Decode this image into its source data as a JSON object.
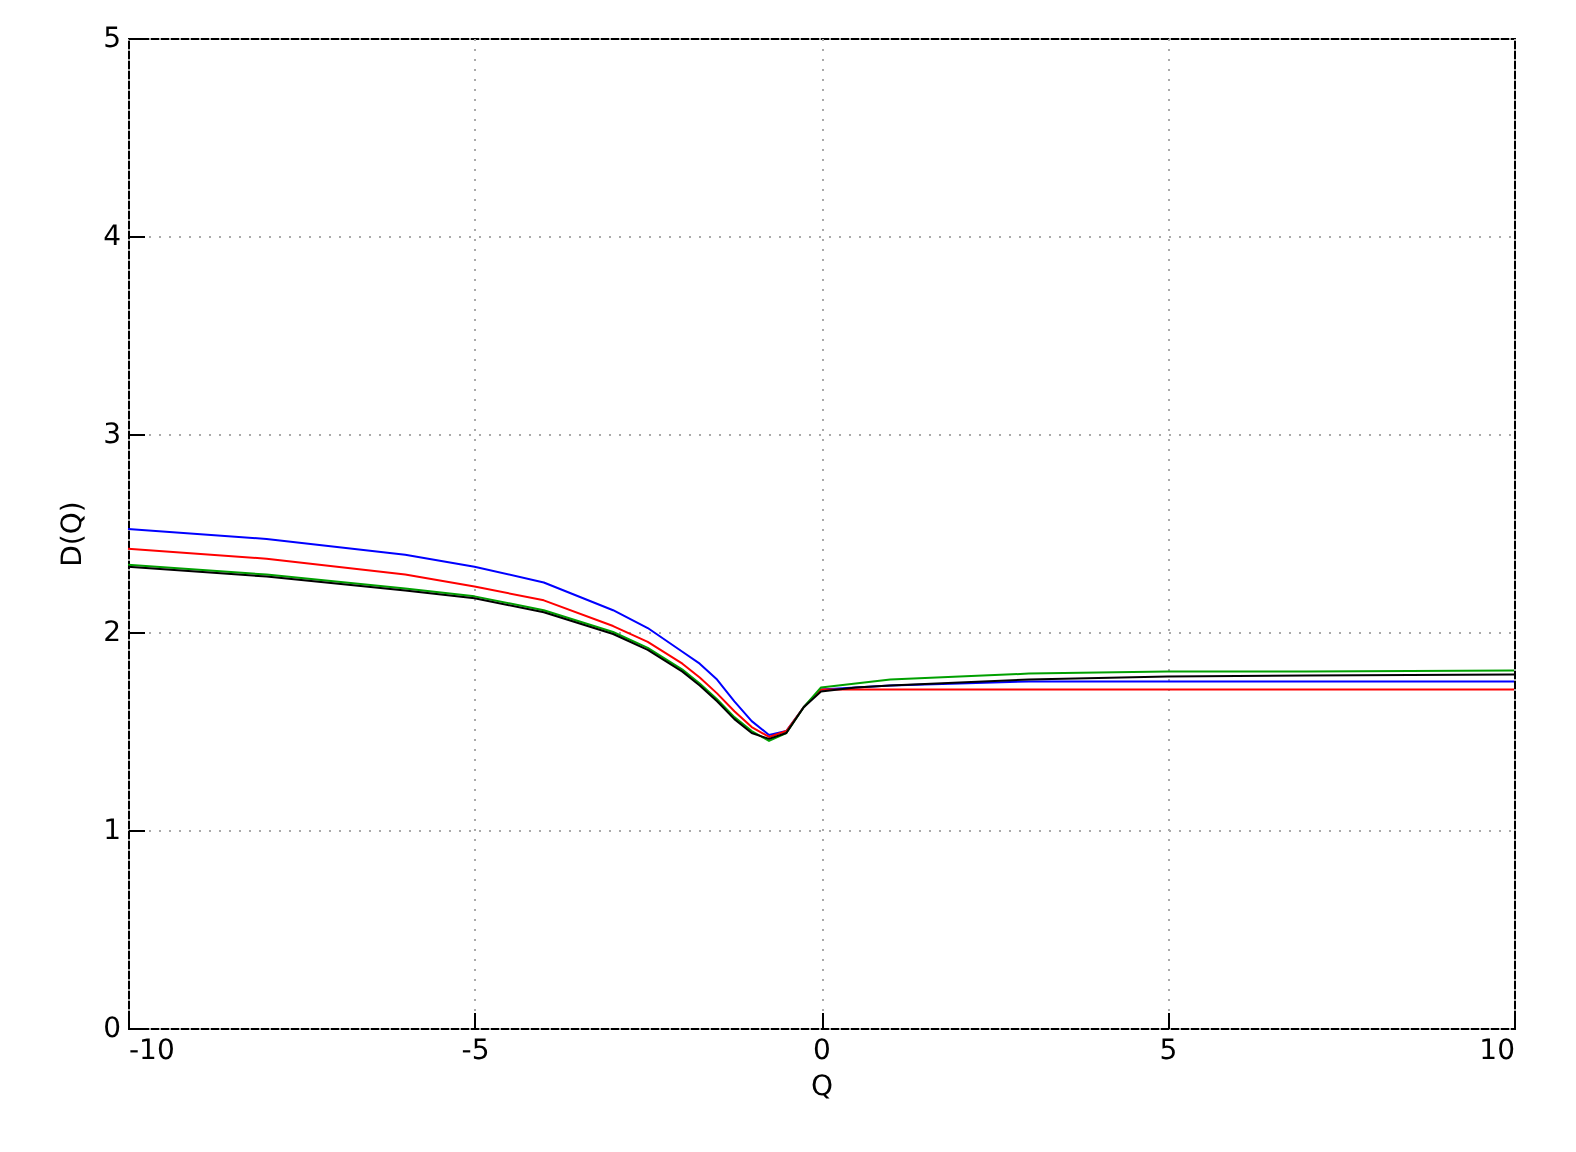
{
  "chart_data": {
    "type": "line",
    "xlabel": "Q",
    "ylabel": "D(Q)",
    "x": [
      -10,
      -8,
      -6,
      -5,
      -4,
      -3,
      -2.5,
      -2,
      -1.75,
      -1.5,
      -1.25,
      -1,
      -0.75,
      -0.5,
      -0.25,
      0,
      0.5,
      1,
      2,
      3,
      5,
      7,
      10
    ],
    "series": [
      {
        "color": "#0000ff",
        "values": [
          2.52,
          2.47,
          2.39,
          2.33,
          2.25,
          2.11,
          2.02,
          1.9,
          1.84,
          1.76,
          1.65,
          1.55,
          1.48,
          1.5,
          1.62,
          1.71,
          1.72,
          1.73,
          1.74,
          1.75,
          1.75,
          1.75,
          1.75
        ]
      },
      {
        "color": "#ff0000",
        "values": [
          2.42,
          2.37,
          2.29,
          2.23,
          2.16,
          2.03,
          1.95,
          1.84,
          1.77,
          1.69,
          1.6,
          1.52,
          1.47,
          1.5,
          1.62,
          1.71,
          1.71,
          1.71,
          1.71,
          1.71,
          1.71,
          1.71,
          1.71
        ]
      },
      {
        "color": "#00a000",
        "values": [
          2.34,
          2.29,
          2.22,
          2.18,
          2.11,
          2,
          1.92,
          1.81,
          1.74,
          1.66,
          1.57,
          1.5,
          1.45,
          1.49,
          1.62,
          1.72,
          1.74,
          1.76,
          1.775,
          1.79,
          1.8,
          1.8,
          1.805
        ]
      },
      {
        "color": "#000000",
        "values": [
          2.33,
          2.28,
          2.21,
          2.17,
          2.1,
          1.99,
          1.91,
          1.8,
          1.73,
          1.65,
          1.56,
          1.49,
          1.46,
          1.49,
          1.62,
          1.7,
          1.72,
          1.73,
          1.745,
          1.76,
          1.775,
          1.78,
          1.785
        ]
      }
    ],
    "xlim": [
      -10,
      10
    ],
    "xticks": [
      -10,
      -5,
      0,
      5,
      10
    ],
    "ylim": [
      0,
      5
    ],
    "yticks": [
      0,
      1,
      2,
      3,
      4,
      5
    ],
    "grid": true,
    "line_style": "solid",
    "marker": "none"
  }
}
